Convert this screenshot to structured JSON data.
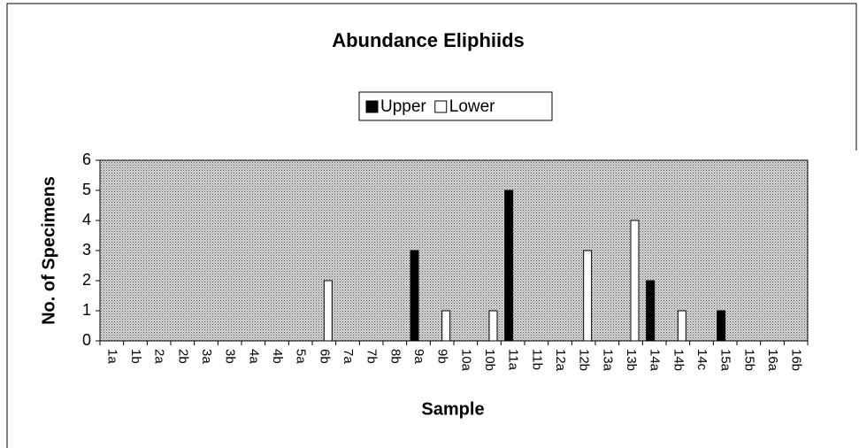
{
  "chart_data": {
    "type": "bar",
    "title": "Abundance Eliphiids",
    "x_label": "Sample",
    "y_label": "No. of Specimens",
    "categories": [
      "1a",
      "1b",
      "2a",
      "2b",
      "3a",
      "3b",
      "4a",
      "4b",
      "5a",
      "6b",
      "7a",
      "7b",
      "8b",
      "9a",
      "9b",
      "10a",
      "10b",
      "11a",
      "11b",
      "12a",
      "12b",
      "13a",
      "13b",
      "14a",
      "14b",
      "14c",
      "15a",
      "15b",
      "16a",
      "16b"
    ],
    "series": [
      {
        "name": "Upper",
        "color": "#000000",
        "values": [
          0,
          0,
          0,
          0,
          0,
          0,
          0,
          0,
          0,
          0,
          0,
          0,
          0,
          3,
          0,
          0,
          0,
          5,
          0,
          0,
          0,
          0,
          0,
          2,
          0,
          0,
          1,
          0,
          0,
          0
        ]
      },
      {
        "name": "Lower",
        "color": "#ffffff",
        "values": [
          0,
          0,
          0,
          0,
          0,
          0,
          0,
          0,
          0,
          2,
          0,
          0,
          0,
          0,
          1,
          0,
          1,
          0,
          0,
          0,
          3,
          0,
          4,
          0,
          1,
          0,
          0,
          0,
          0,
          0
        ]
      }
    ],
    "ylim": [
      0,
      6
    ],
    "yticks": [
      0,
      1,
      2,
      3,
      4,
      5,
      6
    ],
    "legend": "top"
  }
}
